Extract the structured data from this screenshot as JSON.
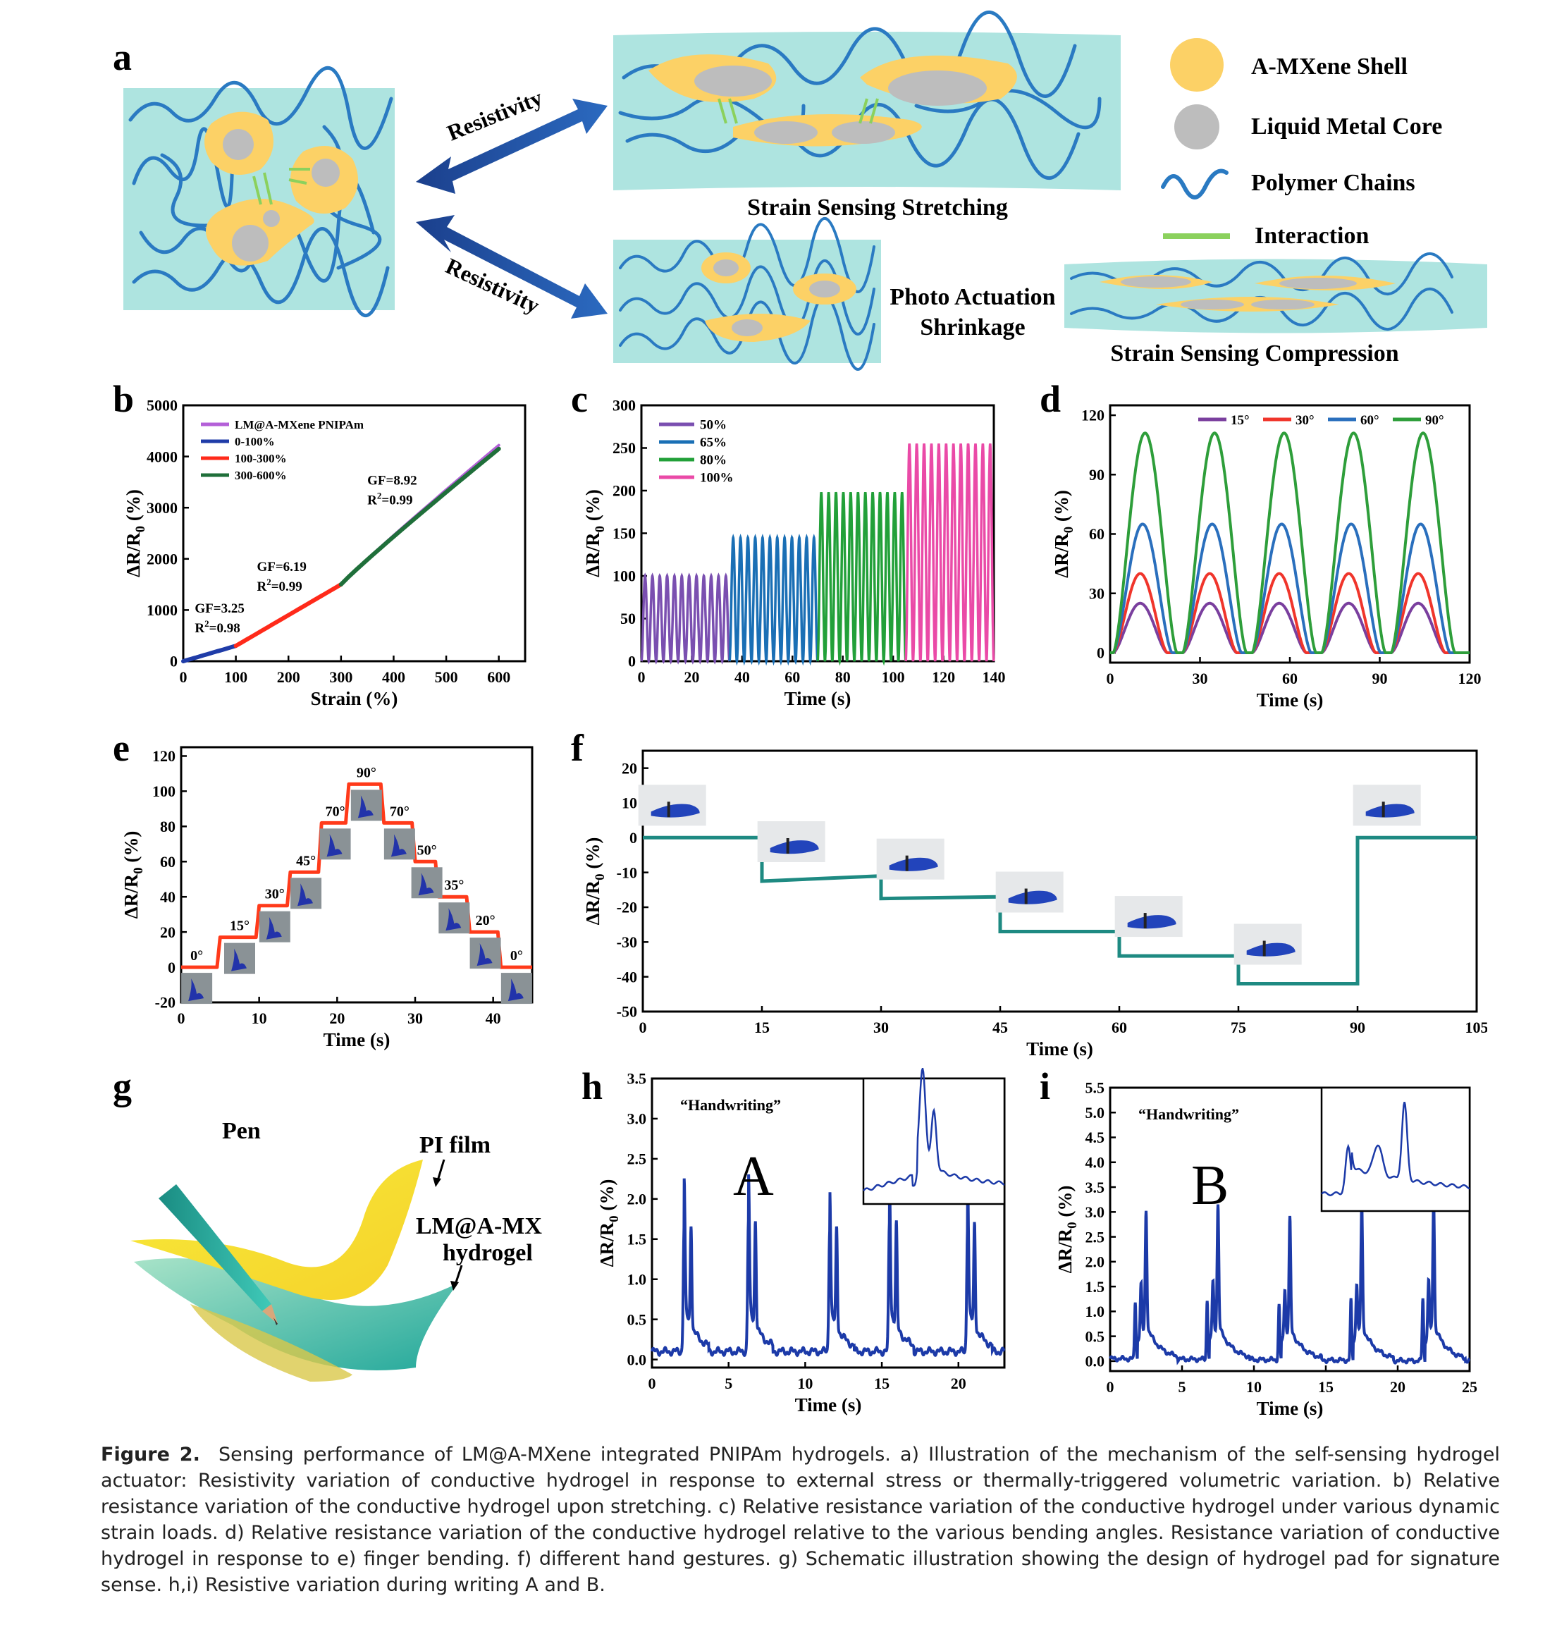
{
  "panel_labels": [
    "a",
    "b",
    "c",
    "d",
    "e",
    "f",
    "g",
    "h",
    "i"
  ],
  "panel_a": {
    "arrow_label_top": "Resistivity",
    "arrow_label_bottom": "Resistivity",
    "label_stretching": "Strain Sensing Stretching",
    "label_photo_1": "Photo Actuation",
    "label_photo_2": "Shrinkage",
    "label_compression": "Strain Sensing Compression",
    "legend": [
      {
        "label": "A-MXene Shell",
        "color": "#fcd166"
      },
      {
        "label": "Liquid Metal Core",
        "color": "#bdbdbd"
      },
      {
        "label": "Polymer Chains",
        "color": "#2b7ec4"
      },
      {
        "label": "Interaction",
        "color": "#8bd15d"
      }
    ]
  },
  "panel_g": {
    "pen": "Pen",
    "pi_film": "PI film",
    "hydrogel_1": "LM@A-MXene",
    "hydrogel_2": "hydrogel"
  },
  "chart_data": [
    {
      "id": "b",
      "type": "line",
      "xlabel": "Strain (%)",
      "ylabel": "ΔR/R0 (%)",
      "xlim": [
        0,
        650
      ],
      "ylim": [
        0,
        5000
      ],
      "xticks": [
        0,
        100,
        200,
        300,
        400,
        500,
        600
      ],
      "yticks": [
        0,
        1000,
        2000,
        3000,
        4000,
        5000
      ],
      "legend": [
        "LM@A-MXene PNIPAm",
        "0-100%",
        "100-300%",
        "300-600%"
      ],
      "series": [
        {
          "name": "LM@A-MXene PNIPAm",
          "color": "#b460d8",
          "x": [
            0,
            100,
            300,
            600
          ],
          "y": [
            0,
            300,
            1500,
            4220
          ]
        },
        {
          "name": "0-100%",
          "color": "#1f3ca8",
          "x": [
            0,
            100
          ],
          "y": [
            0,
            300
          ]
        },
        {
          "name": "100-300%",
          "color": "#ff2a1a",
          "x": [
            100,
            300
          ],
          "y": [
            300,
            1500
          ]
        },
        {
          "name": "300-600%",
          "color": "#1f6f3a",
          "x": [
            300,
            600
          ],
          "y": [
            1500,
            4150
          ]
        }
      ],
      "annotations": [
        {
          "gf": "GF=3.25",
          "r2": "R",
          "r2val": "=0.98",
          "x": 22,
          "y": 950
        },
        {
          "gf": "GF=6.19",
          "r2": "R",
          "r2val": "=0.99",
          "x": 140,
          "y": 1760
        },
        {
          "gf": "GF=8.92",
          "r2": "R",
          "r2val": "=0.99",
          "x": 350,
          "y": 3450
        }
      ]
    },
    {
      "id": "c",
      "type": "line",
      "xlabel": "Time (s)",
      "ylabel": "ΔR/R0 (%)",
      "xlim": [
        0,
        140
      ],
      "ylim": [
        0,
        300
      ],
      "xticks": [
        0,
        20,
        40,
        60,
        80,
        100,
        120,
        140
      ],
      "yticks": [
        0,
        50,
        100,
        150,
        200,
        250,
        300
      ],
      "legend": [
        "50%",
        "65%",
        "80%",
        "100%"
      ],
      "series": [
        {
          "name": "50%",
          "color": "#7a4fb0",
          "t0": 0,
          "t1": 35,
          "peak": 100,
          "cycles": 12
        },
        {
          "name": "65%",
          "color": "#1a6fb5",
          "t0": 35,
          "t1": 70,
          "peak": 145,
          "cycles": 12
        },
        {
          "name": "80%",
          "color": "#22a039",
          "t0": 70,
          "t1": 105,
          "peak": 198,
          "cycles": 12
        },
        {
          "name": "100%",
          "color": "#ea4aa7",
          "t0": 105,
          "t1": 140,
          "peak": 255,
          "cycles": 12
        }
      ]
    },
    {
      "id": "d",
      "type": "line",
      "xlabel": "Time (s)",
      "ylabel": "ΔR/R0 (%)",
      "xlim": [
        0,
        120
      ],
      "ylim": [
        -5,
        125
      ],
      "xticks": [
        0,
        30,
        60,
        90,
        120
      ],
      "yticks": [
        0,
        30,
        60,
        90,
        120
      ],
      "legend": [
        "15°",
        "30°",
        "60°",
        "90°"
      ],
      "series": [
        {
          "name": "15°",
          "color": "#7a3f9e",
          "peak": 25,
          "start": 1,
          "period": 23.2,
          "cycles": 5
        },
        {
          "name": "30°",
          "color": "#f0352b",
          "peak": 40,
          "start": 1,
          "period": 23.2,
          "cycles": 5
        },
        {
          "name": "60°",
          "color": "#2a6fbd",
          "peak": 65,
          "start": 1,
          "period": 23.2,
          "cycles": 5
        },
        {
          "name": "90°",
          "color": "#2e9e3a",
          "peak": 111,
          "start": 1,
          "period": 23.2,
          "cycles": 5
        }
      ]
    },
    {
      "id": "e",
      "type": "line",
      "xlabel": "Time (s)",
      "ylabel": "ΔR/R0 (%)",
      "xlim": [
        0,
        45
      ],
      "ylim": [
        -20,
        125
      ],
      "xticks": [
        0,
        10,
        20,
        30,
        40
      ],
      "yticks": [
        -20,
        0,
        20,
        40,
        60,
        80,
        100,
        120
      ],
      "color": "#ff3a1a",
      "steps": [
        {
          "t": 0,
          "v": 0,
          "label": "0°"
        },
        {
          "t": 5,
          "v": 17,
          "label": "15°"
        },
        {
          "t": 10,
          "v": 35,
          "label": "30°"
        },
        {
          "t": 14,
          "v": 54,
          "label": "45°"
        },
        {
          "t": 18,
          "v": 82,
          "label": "70°"
        },
        {
          "t": 21.5,
          "v": 104,
          "label": "90°"
        },
        {
          "t": 26,
          "v": 82,
          "label": "70°"
        },
        {
          "t": 30,
          "v": 60,
          "label": "50°"
        },
        {
          "t": 33,
          "v": 40,
          "label": "35°"
        },
        {
          "t": 37,
          "v": 20,
          "label": "20°"
        },
        {
          "t": 41,
          "v": 0,
          "label": "0°"
        }
      ]
    },
    {
      "id": "f",
      "type": "line",
      "xlabel": "Time (s)",
      "ylabel": "ΔR/R0 (%)",
      "xlim": [
        0,
        105
      ],
      "ylim": [
        -50,
        25
      ],
      "xticks": [
        0,
        15,
        30,
        45,
        60,
        75,
        90,
        105
      ],
      "yticks": [
        -50,
        -40,
        -30,
        -20,
        -10,
        0,
        10,
        20
      ],
      "color": "#1e8a82",
      "steps": [
        {
          "t0": 0,
          "t1": 15,
          "v0": 0,
          "v1": 0
        },
        {
          "t0": 15,
          "t1": 30,
          "v0": -12.5,
          "v1": -11
        },
        {
          "t0": 30,
          "t1": 45,
          "v0": -17.5,
          "v1": -17
        },
        {
          "t0": 45,
          "t1": 60,
          "v0": -27,
          "v1": -27
        },
        {
          "t0": 60,
          "t1": 75,
          "v0": -34,
          "v1": -34
        },
        {
          "t0": 75,
          "t1": 90,
          "v0": -42,
          "v1": -42
        },
        {
          "t0": 90,
          "t1": 105,
          "v0": 0,
          "v1": 0
        }
      ]
    },
    {
      "id": "h",
      "type": "line",
      "xlabel": "Time (s)",
      "ylabel": "ΔR/R0 (%)",
      "xlim": [
        0,
        23
      ],
      "ylim": [
        -0.1,
        3.5
      ],
      "xticks": [
        0,
        5,
        10,
        15,
        20
      ],
      "yticks": [
        0.0,
        0.5,
        1.0,
        1.5,
        2.0,
        2.5,
        3.0,
        3.5
      ],
      "annotation": "“Handwriting”",
      "letter": "A",
      "color": "#1c3aa8",
      "peaks": [
        2.1,
        6.3,
        11.6,
        15.5,
        20.6
      ],
      "peak_values": [
        1.6,
        1.65,
        1.55,
        1.6,
        1.6
      ]
    },
    {
      "id": "i",
      "type": "line",
      "xlabel": "Time (s)",
      "ylabel": "ΔR/R0 (%)",
      "xlim": [
        0,
        25
      ],
      "ylim": [
        -0.2,
        5.5
      ],
      "xticks": [
        0,
        5,
        10,
        15,
        20,
        25
      ],
      "yticks": [
        0.0,
        0.5,
        1.0,
        1.5,
        2.0,
        2.5,
        3.0,
        3.5,
        4.0,
        4.5,
        5.0,
        5.5
      ],
      "annotation": "“Handwriting”",
      "letter": "B",
      "color": "#1c3aa8",
      "peaks": [
        2.5,
        7.5,
        12.5,
        17.5,
        22.5
      ],
      "peak_values": [
        2.3,
        2.4,
        2.2,
        2.4,
        2.5
      ]
    }
  ],
  "caption": {
    "label": "Figure 2.",
    "text": "Sensing performance of LM@A-MXene integrated PNIPAm hydrogels. a) Illustration of the mechanism of the self-sensing hydrogel actuator: Resistivity variation of conductive hydrogel in response to external stress or thermally-triggered volumetric variation. b) Relative resistance variation of the conductive hydrogel upon stretching. c) Relative resistance variation of the conductive hydrogel under various dynamic strain loads. d) Relative resistance variation of the conductive hydrogel relative to the various bending angles. Resistance variation of conductive hydrogel in response to e) finger bending. f) different hand gestures. g) Schematic illustration showing the design of hydrogel pad for signature sense. h,i) Resistive variation during writing A and B."
  }
}
